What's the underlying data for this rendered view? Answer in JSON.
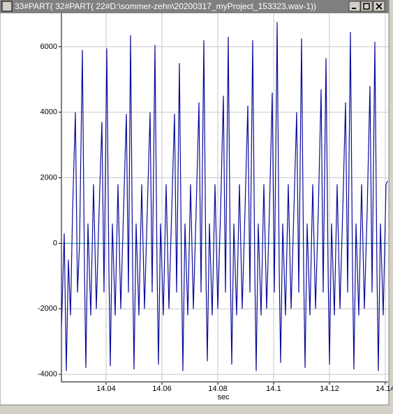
{
  "window": {
    "title": "33#PART( 32#PART( 22#D:\\sommer-zehn\\20200317_myProject_153323.wav-1))"
  },
  "chart_data": {
    "type": "line",
    "xlabel": "sec",
    "color": "#0a0a9a",
    "grid": true,
    "xlim": [
      14.024,
      14.141
    ],
    "xticks": [
      {
        "value": 14.04,
        "label": "14.04"
      },
      {
        "value": 14.06,
        "label": "14.06"
      },
      {
        "value": 14.08,
        "label": "14.08"
      },
      14.1,
      {
        "value": 14.12,
        "label": "14.12"
      },
      14.14
    ],
    "ylim": [
      -4230,
      7020
    ],
    "yticks": [
      6000,
      4000,
      2000,
      0,
      -2000,
      -4000
    ],
    "x": [
      14.024,
      14.025,
      14.02575,
      14.0265,
      14.02725,
      14.028,
      14.029,
      14.02975,
      14.0305,
      14.0315,
      14.03225,
      14.03275,
      14.0335,
      14.0345,
      14.0355,
      14.0365,
      14.0375,
      14.0385,
      14.03925,
      14.04025,
      14.041,
      14.0415,
      14.04225,
      14.04325,
      14.04425,
      14.04525,
      14.04625,
      14.04725,
      14.048,
      14.04875,
      14.0495,
      14.05,
      14.05075,
      14.05175,
      14.05275,
      14.05375,
      14.05475,
      14.05575,
      14.0565,
      14.0575,
      14.05825,
      14.05875,
      14.0595,
      14.0605,
      14.0615,
      14.0625,
      14.0635,
      14.0645,
      14.06525,
      14.06625,
      14.067,
      14.0675,
      14.06825,
      14.06925,
      14.07025,
      14.07125,
      14.07225,
      14.07325,
      14.074,
      14.075,
      14.07575,
      14.07625,
      14.077,
      14.078,
      14.079,
      14.08,
      14.081,
      14.082,
      14.08275,
      14.08375,
      14.0845,
      14.085,
      14.08575,
      14.08675,
      14.08775,
      14.08875,
      14.08975,
      14.09075,
      14.0915,
      14.0925,
      14.09325,
      14.09375,
      14.0945,
      14.0955,
      14.0965,
      14.0975,
      14.0985,
      14.0995,
      14.10025,
      14.10125,
      14.102,
      14.1025,
      14.10325,
      14.10425,
      14.10525,
      14.10625,
      14.10725,
      14.10825,
      14.109,
      14.11,
      14.11075,
      14.11125,
      14.112,
      14.113,
      14.114,
      14.115,
      14.116,
      14.117,
      14.11775,
      14.11875,
      14.1195,
      14.12,
      14.12075,
      14.12175,
      14.12275,
      14.12375,
      14.12475,
      14.12575,
      14.1265,
      14.1275,
      14.12825,
      14.12875,
      14.1295,
      14.1305,
      14.1315,
      14.1325,
      14.1335,
      14.1345,
      14.13525,
      14.13625,
      14.137,
      14.1375,
      14.13825,
      14.13925,
      14.14025,
      14.1408
    ],
    "values": [
      -2600,
      300,
      -3900,
      -500,
      -2200,
      1000,
      4000,
      -1500,
      0,
      5900,
      -800,
      -3800,
      600,
      -2200,
      1800,
      -2000,
      1000,
      3700,
      -1500,
      5950,
      -800,
      -3750,
      600,
      -2200,
      1800,
      -2000,
      1000,
      3950,
      -1500,
      6350,
      -800,
      -3850,
      600,
      -2200,
      1800,
      -2000,
      1000,
      4000,
      -1500,
      6050,
      -800,
      -3700,
      600,
      -2200,
      1800,
      -2000,
      1000,
      3950,
      -1500,
      5500,
      -800,
      -3900,
      600,
      -2200,
      1800,
      -2000,
      1000,
      4300,
      -1500,
      6200,
      -800,
      -3600,
      600,
      -2200,
      1800,
      -2000,
      1000,
      4500,
      -1500,
      6300,
      -800,
      -3700,
      600,
      -2200,
      1800,
      -2000,
      1000,
      4200,
      -1500,
      6200,
      -800,
      -3900,
      600,
      -2200,
      1800,
      -2000,
      1000,
      4600,
      -1500,
      6750,
      -800,
      -3650,
      600,
      -2200,
      1800,
      -2000,
      1000,
      4000,
      -1500,
      6250,
      -800,
      -3800,
      600,
      -2200,
      1800,
      -2000,
      1000,
      4700,
      -1500,
      5650,
      -800,
      -3700,
      600,
      -2200,
      1800,
      -2000,
      1000,
      4300,
      -1500,
      6450,
      -800,
      -3850,
      600,
      -2200,
      1800,
      -2000,
      1000,
      4800,
      -1500,
      6150,
      -800,
      -3900,
      600,
      -2200,
      1800,
      1900
    ]
  }
}
